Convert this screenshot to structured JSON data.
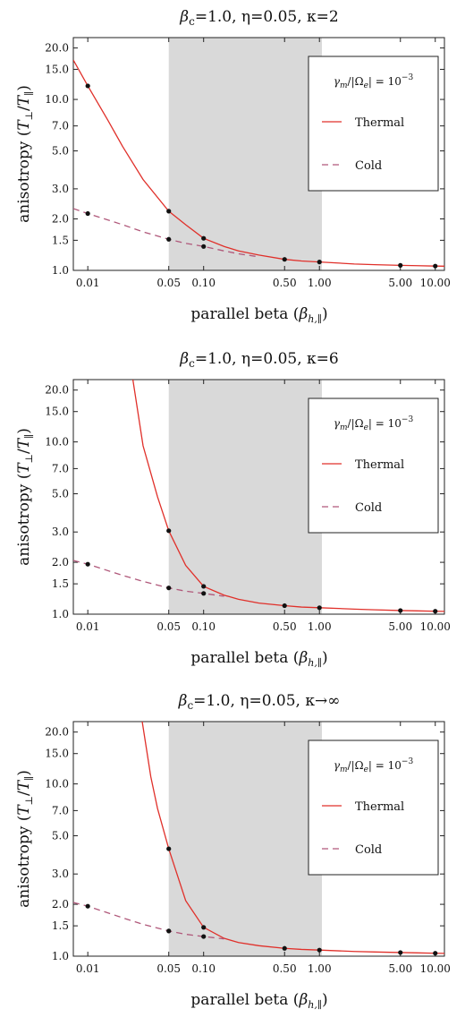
{
  "chart_data": [
    {
      "type": "line",
      "title": "β_c=1.0, η=0.05, κ=2",
      "xlabel": "parallel beta (β_h,∥)",
      "ylabel": "anisotropy (T⊥/T∥)",
      "xscale": "log",
      "yscale": "log",
      "xlim": [
        0.0075,
        12
      ],
      "ylim": [
        1.0,
        23
      ],
      "xticks": [
        0.01,
        0.05,
        0.1,
        0.5,
        1.0,
        5.0,
        10.0
      ],
      "xtick_labels": [
        "0.01",
        "0.05",
        "0.10",
        "0.50",
        "1.00",
        "5.00",
        "10.00"
      ],
      "yticks": [
        1.0,
        1.5,
        2.0,
        3.0,
        5.0,
        7.0,
        10.0,
        15.0,
        20.0
      ],
      "ytick_labels": [
        "1.0",
        "1.5",
        "2.0",
        "3.0",
        "5.0",
        "7.0",
        "10.0",
        "15.0",
        "20.0"
      ],
      "shaded_region": [
        0.05,
        1.05
      ],
      "legend": {
        "title": "γm/|Ωe| = 10⁻³",
        "position": "top-right",
        "entries": [
          "Thermal",
          "Cold"
        ]
      },
      "series": [
        {
          "name": "Thermal",
          "style": "solid",
          "color": "#e0302a",
          "x": [
            0.0075,
            0.01,
            0.015,
            0.02,
            0.03,
            0.05,
            0.07,
            0.1,
            0.15,
            0.2,
            0.3,
            0.5,
            0.7,
            1.0,
            2.0,
            3.0,
            5.0,
            7.0,
            10.0,
            12.0
          ],
          "y": [
            17.0,
            12.0,
            7.5,
            5.3,
            3.4,
            2.22,
            1.85,
            1.54,
            1.38,
            1.3,
            1.23,
            1.16,
            1.135,
            1.12,
            1.09,
            1.08,
            1.07,
            1.065,
            1.06,
            1.058
          ],
          "markers_x": [
            0.01,
            0.05,
            0.1,
            0.5,
            1.0,
            5.0,
            10.0
          ],
          "markers_y": [
            12.0,
            2.22,
            1.54,
            1.16,
            1.12,
            1.07,
            1.06
          ]
        },
        {
          "name": "Cold",
          "style": "dashed",
          "color": "#b0587a",
          "x": [
            0.0075,
            0.01,
            0.02,
            0.03,
            0.05,
            0.07,
            0.1,
            0.15,
            0.2,
            0.3
          ],
          "y": [
            2.3,
            2.15,
            1.85,
            1.68,
            1.52,
            1.44,
            1.38,
            1.3,
            1.25,
            1.2
          ],
          "markers_x": [
            0.01,
            0.05,
            0.1
          ],
          "markers_y": [
            2.15,
            1.52,
            1.38
          ]
        }
      ]
    },
    {
      "type": "line",
      "title": "β_c=1.0, η=0.05, κ=6",
      "xlabel": "parallel beta (β_h,∥)",
      "ylabel": "anisotropy (T⊥/T∥)",
      "xscale": "log",
      "yscale": "log",
      "xlim": [
        0.0075,
        12
      ],
      "ylim": [
        1.0,
        23
      ],
      "xticks": [
        0.01,
        0.05,
        0.1,
        0.5,
        1.0,
        5.0,
        10.0
      ],
      "xtick_labels": [
        "0.01",
        "0.05",
        "0.10",
        "0.50",
        "1.00",
        "5.00",
        "10.00"
      ],
      "yticks": [
        1.0,
        1.5,
        2.0,
        3.0,
        5.0,
        7.0,
        10.0,
        15.0,
        20.0
      ],
      "ytick_labels": [
        "1.0",
        "1.5",
        "2.0",
        "3.0",
        "5.0",
        "7.0",
        "10.0",
        "15.0",
        "20.0"
      ],
      "shaded_region": [
        0.05,
        1.05
      ],
      "legend": {
        "title": "γm/|Ωe| = 10⁻³",
        "position": "top-right",
        "entries": [
          "Thermal",
          "Cold"
        ]
      },
      "series": [
        {
          "name": "Thermal",
          "style": "solid",
          "color": "#e0302a",
          "x": [
            0.0245,
            0.03,
            0.04,
            0.05,
            0.07,
            0.1,
            0.15,
            0.2,
            0.3,
            0.5,
            0.7,
            1.0,
            2.0,
            3.0,
            5.0,
            7.0,
            10.0,
            12.0
          ],
          "y": [
            23.0,
            9.5,
            4.8,
            3.05,
            1.92,
            1.45,
            1.29,
            1.22,
            1.16,
            1.12,
            1.1,
            1.09,
            1.07,
            1.06,
            1.05,
            1.045,
            1.04,
            1.038
          ],
          "markers_x": [
            0.05,
            0.1,
            0.5,
            1.0,
            5.0,
            10.0
          ],
          "markers_y": [
            3.05,
            1.45,
            1.12,
            1.09,
            1.05,
            1.04
          ]
        },
        {
          "name": "Cold",
          "style": "dashed",
          "color": "#b0587a",
          "x": [
            0.0075,
            0.01,
            0.02,
            0.03,
            0.05,
            0.07,
            0.1,
            0.15
          ],
          "y": [
            2.05,
            1.95,
            1.68,
            1.55,
            1.42,
            1.36,
            1.32,
            1.27
          ],
          "markers_x": [
            0.01,
            0.05,
            0.1
          ],
          "markers_y": [
            1.95,
            1.42,
            1.32
          ]
        }
      ]
    },
    {
      "type": "line",
      "title": "β_c=1.0, η=0.05, κ→∞",
      "xlabel": "parallel beta (β_h,∥)",
      "ylabel": "anisotropy (T⊥/T∥)",
      "xscale": "log",
      "yscale": "log",
      "xlim": [
        0.0075,
        12
      ],
      "ylim": [
        1.0,
        23
      ],
      "xticks": [
        0.01,
        0.05,
        0.1,
        0.5,
        1.0,
        5.0,
        10.0
      ],
      "xtick_labels": [
        "0.01",
        "0.05",
        "0.10",
        "0.50",
        "1.00",
        "5.00",
        "10.00"
      ],
      "yticks": [
        1.0,
        1.5,
        2.0,
        3.0,
        5.0,
        7.0,
        10.0,
        15.0,
        20.0
      ],
      "ytick_labels": [
        "1.0",
        "1.5",
        "2.0",
        "3.0",
        "5.0",
        "7.0",
        "10.0",
        "15.0",
        "20.0"
      ],
      "shaded_region": [
        0.05,
        1.05
      ],
      "legend": {
        "title": "γm/|Ωe| = 10⁻³",
        "position": "top-right",
        "entries": [
          "Thermal",
          "Cold"
        ]
      },
      "series": [
        {
          "name": "Thermal",
          "style": "solid",
          "color": "#e0302a",
          "x": [
            0.0295,
            0.035,
            0.04,
            0.05,
            0.07,
            0.1,
            0.15,
            0.2,
            0.3,
            0.5,
            0.7,
            1.0,
            2.0,
            3.0,
            5.0,
            7.0,
            10.0,
            12.0
          ],
          "y": [
            23.0,
            11.0,
            7.2,
            4.2,
            2.1,
            1.47,
            1.27,
            1.2,
            1.15,
            1.11,
            1.095,
            1.085,
            1.065,
            1.058,
            1.05,
            1.045,
            1.04,
            1.038
          ],
          "markers_x": [
            0.05,
            0.1,
            0.5,
            1.0,
            5.0,
            10.0
          ],
          "markers_y": [
            4.2,
            1.47,
            1.11,
            1.085,
            1.05,
            1.04
          ]
        },
        {
          "name": "Cold",
          "style": "dashed",
          "color": "#b0587a",
          "x": [
            0.0075,
            0.01,
            0.02,
            0.03,
            0.05,
            0.07,
            0.1,
            0.15
          ],
          "y": [
            2.05,
            1.95,
            1.67,
            1.53,
            1.4,
            1.34,
            1.3,
            1.26
          ],
          "markers_x": [
            0.01,
            0.05,
            0.1
          ],
          "markers_y": [
            1.95,
            1.4,
            1.3
          ]
        }
      ]
    }
  ]
}
